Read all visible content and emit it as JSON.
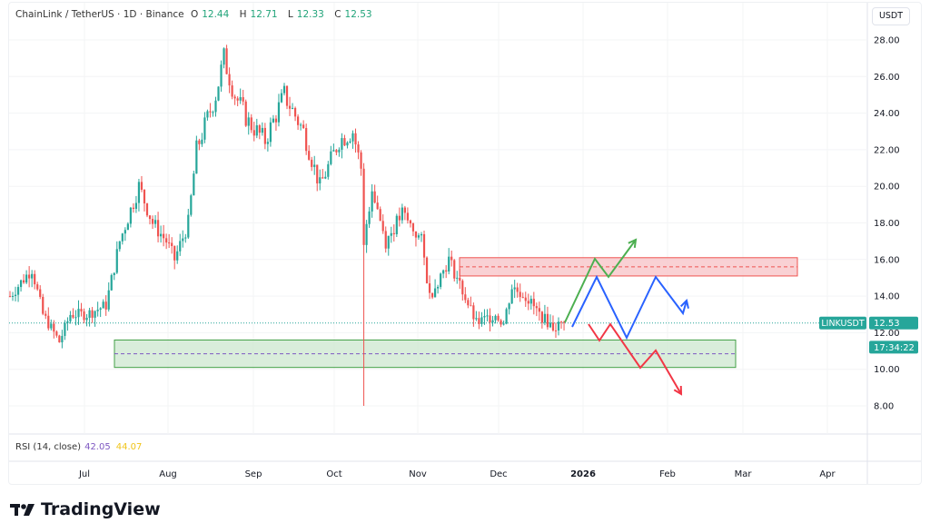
{
  "header": {
    "symbol": "ChainLink / TetherUS · 1D · Binance",
    "o_label": "O",
    "o": "12.44",
    "h_label": "H",
    "h": "12.71",
    "l_label": "L",
    "l": "12.33",
    "c_label": "C",
    "c": "12.53"
  },
  "currency_button": "USDT",
  "price_tag": {
    "symbol": "LINKUSDT",
    "price": "12.53",
    "countdown": "17:34:22"
  },
  "rsi": {
    "label": "RSI (14, close)",
    "value": "42.05",
    "ma": "44.07"
  },
  "brand": "TradingView",
  "colors": {
    "up": "#26a69a",
    "down": "#ef5350",
    "resistance": "#f7c5c9",
    "support": "#cfe8d2"
  },
  "chart_data": {
    "type": "candlestick",
    "symbol": "LINKUSDT",
    "y_ticks": [
      "28.00",
      "26.00",
      "24.00",
      "22.00",
      "20.00",
      "18.00",
      "16.00",
      "14.00",
      "12.00",
      "10.00",
      "8.00"
    ],
    "ylim": [
      7,
      29
    ],
    "x_ticks": [
      "Jul",
      "Aug",
      "Sep",
      "Oct",
      "Nov",
      "Dec",
      "2026",
      "Feb",
      "Mar",
      "Apr"
    ],
    "approx_close_keypoints_day_price": [
      [
        0,
        14
      ],
      [
        8,
        15.5
      ],
      [
        12,
        13
      ],
      [
        18,
        11.5
      ],
      [
        22,
        13
      ],
      [
        28,
        13
      ],
      [
        35,
        13.5
      ],
      [
        40,
        17
      ],
      [
        47,
        20
      ],
      [
        52,
        18
      ],
      [
        57,
        17
      ],
      [
        60,
        16
      ],
      [
        65,
        18
      ],
      [
        68,
        22
      ],
      [
        75,
        25
      ],
      [
        78,
        27
      ],
      [
        82,
        25
      ],
      [
        87,
        23.5
      ],
      [
        93,
        22.5
      ],
      [
        100,
        25
      ],
      [
        107,
        23
      ],
      [
        113,
        20
      ],
      [
        120,
        22.5
      ],
      [
        125,
        23
      ],
      [
        128,
        21
      ],
      [
        129,
        17
      ],
      [
        132,
        20
      ],
      [
        137,
        17
      ],
      [
        143,
        18.5
      ],
      [
        150,
        17
      ],
      [
        153,
        14
      ],
      [
        160,
        16
      ],
      [
        163,
        15
      ],
      [
        170,
        12.5
      ],
      [
        177,
        13
      ],
      [
        180,
        12.5
      ],
      [
        183,
        14.5
      ],
      [
        188,
        14
      ],
      [
        193,
        13
      ],
      [
        198,
        12.3
      ],
      [
        202,
        12.53
      ]
    ],
    "annotations": {
      "resistance_zone": [
        15.1,
        16.1
      ],
      "support_zone": [
        10.1,
        11.6
      ],
      "oct_10_wick_low": 8.0
    }
  }
}
